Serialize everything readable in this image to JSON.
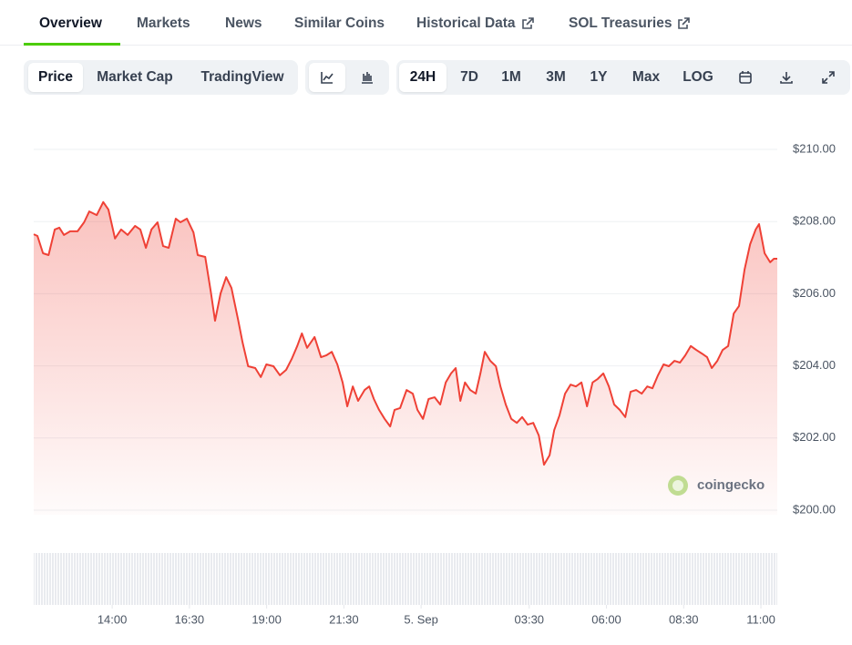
{
  "tabs": [
    "Overview",
    "Markets",
    "News",
    "Similar Coins",
    "Historical Data",
    "SOL Treasuries"
  ],
  "toolbar": {
    "views": [
      "Price",
      "Market Cap",
      "TradingView"
    ],
    "ranges": [
      "24H",
      "7D",
      "1M",
      "3M",
      "1Y",
      "Max",
      "LOG"
    ]
  },
  "watermark": "coingecko",
  "chart_data": {
    "type": "line",
    "color": "#ef4136",
    "x": [
      11.46,
      11.58,
      11.76,
      11.94,
      12.14,
      12.29,
      12.44,
      12.64,
      12.88,
      13.09,
      13.26,
      13.5,
      13.71,
      13.88,
      14.09,
      14.29,
      14.5,
      14.74,
      14.91,
      15.09,
      15.27,
      15.47,
      15.65,
      15.83,
      16.06,
      16.21,
      16.42,
      16.63,
      16.77,
      17.01,
      17.19,
      17.33,
      17.51,
      17.69,
      17.86,
      18.07,
      18.22,
      18.4,
      18.63,
      18.81,
      18.99,
      19.22,
      19.43,
      19.63,
      19.81,
      19.99,
      20.14,
      20.31,
      20.55,
      20.76,
      20.93,
      21.11,
      21.29,
      21.46,
      21.61,
      21.79,
      21.96,
      22.17,
      22.32,
      22.47,
      22.64,
      22.82,
      23.0,
      23.14,
      23.32,
      23.53,
      23.73,
      23.88,
      24.06,
      24.24,
      24.44,
      24.62,
      24.8,
      24.97,
      25.12,
      25.27,
      25.42,
      25.59,
      25.77,
      25.92,
      26.06,
      26.24,
      26.42,
      26.57,
      26.74,
      26.92,
      27.1,
      27.27,
      27.45,
      27.63,
      27.81,
      27.98,
      28.16,
      28.31,
      28.48,
      28.66,
      28.84,
      29.01,
      29.19,
      29.37,
      29.55,
      29.72,
      29.9,
      30.08,
      30.25,
      30.43,
      30.61,
      30.78,
      30.96,
      31.14,
      31.32,
      31.49,
      31.67,
      31.85,
      32.02,
      32.2,
      32.38,
      32.55,
      32.73,
      32.91,
      33.09,
      33.26,
      33.41,
      33.59,
      33.76,
      33.94,
      34.12,
      34.29,
      34.47,
      34.65,
      34.83,
      34.94,
      35.12,
      35.3,
      35.42,
      35.53
    ],
    "values": [
      207.65,
      207.6,
      207.12,
      207.07,
      207.78,
      207.83,
      207.63,
      207.73,
      207.73,
      207.98,
      208.28,
      208.18,
      208.54,
      208.33,
      207.53,
      207.78,
      207.63,
      207.88,
      207.78,
      207.27,
      207.78,
      207.98,
      207.32,
      207.27,
      208.08,
      207.98,
      208.08,
      207.7,
      207.07,
      207.02,
      206.06,
      205.25,
      206.01,
      206.46,
      206.16,
      205.3,
      204.65,
      203.99,
      203.94,
      203.69,
      204.04,
      203.99,
      203.74,
      203.89,
      204.19,
      204.55,
      204.9,
      204.5,
      204.8,
      204.24,
      204.29,
      204.39,
      204.04,
      203.54,
      202.88,
      203.43,
      203.03,
      203.33,
      203.43,
      203.08,
      202.78,
      202.53,
      202.32,
      202.78,
      202.83,
      203.33,
      203.23,
      202.78,
      202.53,
      203.08,
      203.13,
      202.93,
      203.54,
      203.79,
      203.94,
      203.03,
      203.54,
      203.33,
      203.23,
      203.79,
      204.39,
      204.14,
      203.99,
      203.43,
      202.93,
      202.53,
      202.42,
      202.58,
      202.37,
      202.42,
      202.07,
      201.26,
      201.52,
      202.22,
      202.63,
      203.23,
      203.48,
      203.43,
      203.54,
      202.88,
      203.54,
      203.64,
      203.79,
      203.43,
      202.93,
      202.78,
      202.58,
      203.28,
      203.33,
      203.23,
      203.43,
      203.38,
      203.74,
      204.04,
      203.99,
      204.14,
      204.09,
      204.29,
      204.55,
      204.44,
      204.34,
      204.24,
      203.94,
      204.14,
      204.44,
      204.55,
      205.45,
      205.66,
      206.67,
      207.37,
      207.78,
      207.93,
      207.12,
      206.87,
      206.97,
      206.97
    ],
    "xlim": [
      11.46,
      35.53
    ],
    "xticks": [
      {
        "value": 14,
        "label": "14:00"
      },
      {
        "value": 16.5,
        "label": "16:30"
      },
      {
        "value": 19,
        "label": "19:00"
      },
      {
        "value": 21.5,
        "label": "21:30"
      },
      {
        "value": 24,
        "label": "5. Sep"
      },
      {
        "value": 27.5,
        "label": "03:30"
      },
      {
        "value": 30,
        "label": "06:00"
      },
      {
        "value": 32.5,
        "label": "08:30"
      },
      {
        "value": 35,
        "label": "11:00"
      }
    ],
    "ylim": [
      200,
      210
    ],
    "yticks": [
      {
        "value": 200,
        "label": "$200.00"
      },
      {
        "value": 202,
        "label": "$202.00"
      },
      {
        "value": 204,
        "label": "$204.00"
      },
      {
        "value": 206,
        "label": "$206.00"
      },
      {
        "value": 208,
        "label": "$208.00"
      },
      {
        "value": 210,
        "label": "$210.00"
      }
    ],
    "grid": true
  }
}
